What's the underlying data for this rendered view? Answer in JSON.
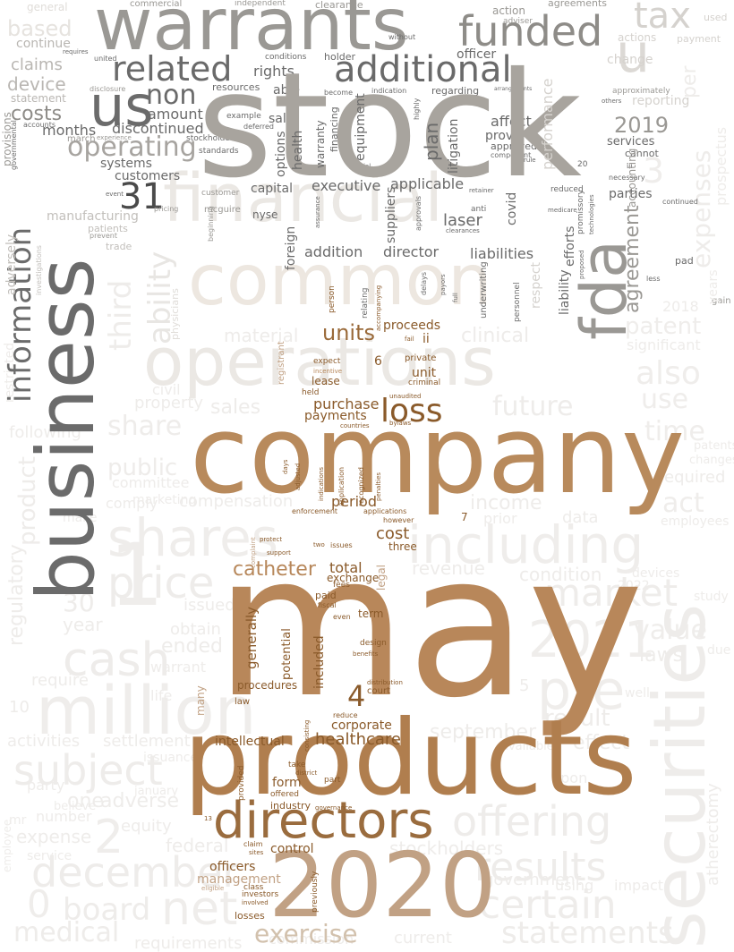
{
  "palette": {
    "brown": "#b7875a",
    "brown_dark": "#8a5a2a",
    "tan": "#c8aa8a",
    "grey_dark": "#6b6b6b",
    "grey_mid": "#9a9894",
    "grey_light": "#e8e6e3",
    "cream": "#efe6dc"
  },
  "words": {
    "may": "may",
    "stock": "stock",
    "company": "company",
    "business": "business",
    "warrants": "warrants",
    "products": "products",
    "year_2020": "2020",
    "common": "common",
    "financial": "financial",
    "operations": "operations",
    "directors": "directors",
    "securities": "securities",
    "fda": "fda",
    "shares": "shares",
    "including": "including",
    "million": "million",
    "information": "information",
    "funded": "funded",
    "additional": "additional",
    "related": "related",
    "us": "us",
    "tax": "tax",
    "u": "u",
    "non": "non",
    "costs": "costs",
    "operating": "operating",
    "customers": "customers",
    "num_31": "31",
    "loss": "loss",
    "catheter": "catheter",
    "num_4": "4",
    "healthcare": "healthcare",
    "exercise": "exercise",
    "plan": "plan",
    "year_2019": "2019",
    "agreement": "agreement",
    "laser": "laser",
    "units": "units",
    "total": "total",
    "control": "control",
    "officers": "officers",
    "management": "management",
    "price": "price",
    "market": "market",
    "result": "result",
    "certain": "certain",
    "net": "net",
    "subject": "subject",
    "december": "december",
    "cash": "cash",
    "offering": "offering",
    "pre": "pre",
    "year_2021": "2021",
    "value": "value",
    "board": "board",
    "medical": "medical",
    "results": "results",
    "statements": "statements",
    "based": "based",
    "claims": "claims",
    "device": "device",
    "amount": "amount",
    "months": "months",
    "discontinued": "discontinued",
    "systems": "systems",
    "rights": "rights",
    "able": "able",
    "sale": "sale",
    "officer": "officer",
    "affect": "affect",
    "provide": "provide",
    "services": "services",
    "executive": "executive",
    "applicable": "applicable",
    "capital": "capital",
    "parties": "parties",
    "director": "director",
    "liabilities": "liabilities",
    "addition": "addition",
    "foreign": "foreign",
    "ability": "ability",
    "third": "third",
    "purchase": "purchase",
    "payments": "payments",
    "period": "period",
    "cost": "cost",
    "proceeds": "proceeds",
    "unit": "unit",
    "lease": "lease",
    "ii": "ii",
    "num_6": "6",
    "term": "term",
    "procedures": "procedures",
    "intellectual": "intellectual",
    "corporate": "corporate",
    "form": "form",
    "industry": "industry",
    "included": "included",
    "generally": "generally",
    "potential": "potential",
    "court": "court",
    "exchange": "exchange",
    "paid": "paid",
    "three": "three",
    "law": "law",
    "losses": "losses",
    "investors": "investors",
    "claim": "claim",
    "part": "part",
    "take": "take",
    "provided": "provided",
    "many": "many",
    "legal": "legal",
    "manufacturing": "manufacturing",
    "patients": "patients",
    "trade": "trade",
    "continue": "continue",
    "general": "general",
    "statement": "statement",
    "holder": "holder",
    "conditions": "conditions",
    "resources": "resources",
    "health": "health",
    "warranty": "warranty",
    "financing": "financing",
    "equipment": "equipment",
    "suppliers": "suppliers",
    "litigation": "litigation",
    "approved": "approved",
    "covid": "covid",
    "efforts": "efforts",
    "liability": "liability",
    "accounting": "accounting",
    "respect": "respect",
    "performance": "performance",
    "cannot": "cannot",
    "nyse": "nyse",
    "mcguire": "mcguire",
    "options": "options",
    "stockholder": "stockholder",
    "standards": "standards",
    "example": "example",
    "customer": "customer",
    "march": "march",
    "regarding": "regarding",
    "indication": "indication",
    "become": "become",
    "clearance": "clearance",
    "independent": "independent",
    "commercial": "commercial",
    "without": "without",
    "adversely": "adversely",
    "provisions": "provisions",
    "regulatory": "regulatory",
    "product": "product",
    "expense": "expense",
    "sales": "sales",
    "future": "future",
    "also": "also",
    "use": "use",
    "time": "time",
    "clinical": "clinical",
    "material": "material",
    "share": "share",
    "public": "public",
    "committee": "committee",
    "marketing": "marketing",
    "regulations": "regulations",
    "condition": "condition",
    "revenue": "revenue",
    "income": "income",
    "data": "data",
    "act": "act",
    "required": "required",
    "ended": "ended",
    "issued": "issued",
    "obtain": "obtain",
    "warrant": "warrant",
    "require": "require",
    "laws": "laws",
    "devices": "devices",
    "employees": "employees",
    "significant": "significant",
    "patent": "patent",
    "audit": "audit",
    "activities": "activities",
    "settlement": "settlement",
    "september": "september",
    "effect": "effect",
    "one": "one",
    "adverse": "adverse",
    "equity": "equity",
    "federal": "federal",
    "stockholders": "stockholders",
    "government": "government",
    "using": "using",
    "impact": "impact",
    "current": "current",
    "requirements": "requirements",
    "commission": "commission",
    "employee": "employee",
    "party": "party",
    "number": "number",
    "mr": "mr",
    "service": "service",
    "gain": "gain",
    "pad": "pad",
    "years": "years",
    "expenses": "expenses",
    "per": "per",
    "approximately": "approximately",
    "used": "used",
    "payment": "payment",
    "actions": "actions",
    "change": "change",
    "reporting": "reporting",
    "agreements": "agreements",
    "action": "action",
    "adviser": "adviser",
    "continued": "continued",
    "less": "less",
    "accompanying": "accompanying",
    "underwriting": "underwriting",
    "personnel": "personnel",
    "relating": "relating",
    "person": "person",
    "registrant": "registrant",
    "incentive": "incentive",
    "expect": "expect",
    "held": "held",
    "private": "private",
    "criminal": "criminal",
    "unaudited": "unaudited",
    "fail": "fail",
    "bylaws": "bylaws",
    "adjusted": "adjusted",
    "days": "days",
    "enforcement": "enforcement",
    "indications": "indications",
    "application": "application",
    "recognized": "recognized",
    "penalties": "penalties",
    "applications": "applications",
    "however": "however",
    "issues": "issues",
    "two": "two",
    "protect": "protect",
    "support": "support",
    "complaint": "complaint",
    "fees": "fees",
    "fiscal": "fiscal",
    "even": "even",
    "design": "design",
    "benefits": "benefits",
    "distribution": "distribution",
    "reduce": "reduce",
    "consisting": "consisting",
    "offered": "offered",
    "district": "district",
    "governance": "governance",
    "previously": "previously",
    "sites": "sites",
    "eligible": "eligible",
    "involved": "involved",
    "class": "class",
    "initial": "initial",
    "component": "component",
    "rule": "rule",
    "technologies": "technologies",
    "proposed": "proposed",
    "promissory": "promissory",
    "reduced": "reduced",
    "medicare": "medicare",
    "retainer": "retainer",
    "anti": "anti",
    "clearances": "clearances",
    "approvals": "approvals",
    "assurance": "assurance",
    "pricing": "pricing",
    "event": "event",
    "physicians": "physicians",
    "deferred": "deferred",
    "accounts": "accounts",
    "governmental": "governmental",
    "experience": "experience",
    "disclosure": "disclosure",
    "united": "united",
    "requires": "requires",
    "highly": "highly",
    "arrangements": "arrangements",
    "others": "others",
    "necessary": "necessary",
    "num_20": "20",
    "iii": "iii",
    "delays": "delays",
    "payors": "payors",
    "full": "full",
    "beginning": "beginning",
    "prevent": "prevent",
    "investigations": "investigations",
    "countries": "countries",
    "num_7": "7",
    "num_5": "5",
    "num_10": "10",
    "num_30": "30",
    "num_1": "1",
    "num_2": "2",
    "num_0": "0",
    "num_3": "3",
    "prior": "prior",
    "year": "year",
    "well": "well",
    "atherectomy": "atherectomy",
    "prospectus": "prospectus",
    "study": "study",
    "changes": "changes",
    "patents": "patents",
    "due": "due",
    "upon": "upon",
    "available": "available",
    "life": "life",
    "civil": "civil",
    "property": "property",
    "restricted": "restricted",
    "compensation": "compensation",
    "following": "following",
    "comply": "comply",
    "make": "make",
    "issuance": "issuance",
    "believe": "believe",
    "january": "january",
    "existing": "existing",
    "num_2018": "2018",
    "num_2022": "2022",
    "num_13": "13"
  }
}
